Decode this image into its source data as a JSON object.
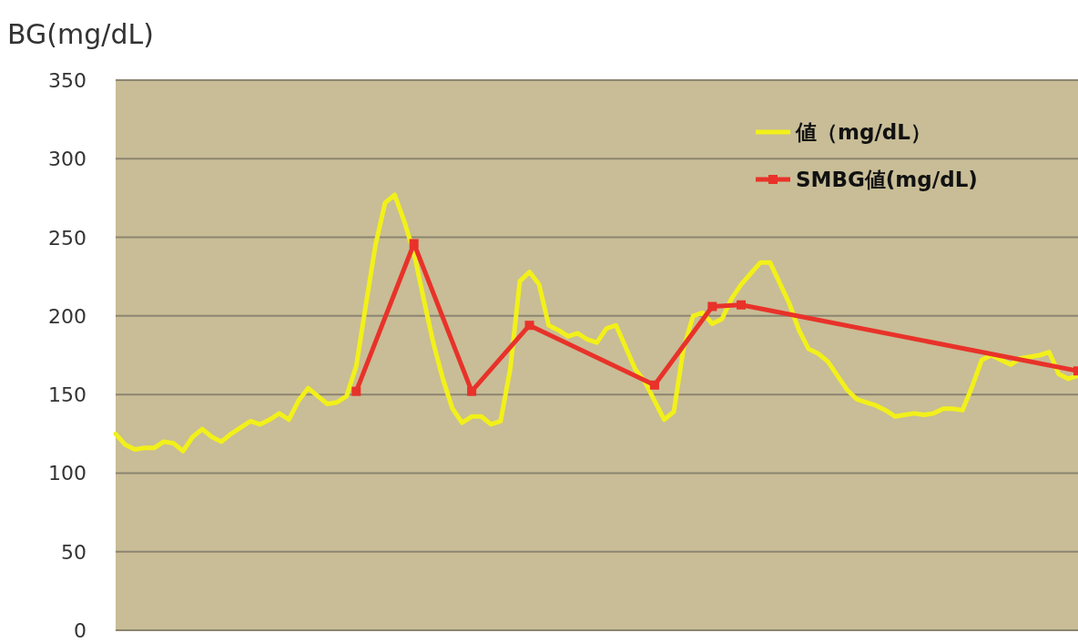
{
  "chart_data": {
    "type": "line",
    "ylabel": "BG(mg/dL)",
    "ylim": [
      0,
      350
    ],
    "yticks": [
      0,
      50,
      100,
      150,
      200,
      250,
      300,
      350
    ],
    "grid": "y",
    "legend": "top right",
    "tick_labels": "y",
    "line_style": "solid",
    "categories": [
      null,
      null,
      null,
      null,
      null,
      null,
      null,
      null,
      null,
      null,
      null,
      null,
      null,
      null,
      null,
      null,
      null,
      null,
      null,
      null,
      null,
      null,
      null,
      null,
      null,
      null,
      null,
      null,
      null,
      null,
      null,
      null,
      null,
      null,
      null,
      null,
      null,
      null,
      null,
      null,
      null,
      null,
      null,
      null,
      null,
      null,
      null,
      null,
      null,
      null,
      null,
      null,
      null,
      null,
      null,
      null,
      null,
      null,
      null,
      null,
      null,
      null,
      null,
      null,
      null,
      null,
      null,
      null,
      null,
      null,
      null,
      null,
      null,
      null,
      null,
      null,
      null,
      null,
      null,
      null,
      null,
      null,
      null,
      null,
      null,
      null,
      null,
      null,
      null,
      null,
      null,
      null,
      null,
      null,
      null,
      null,
      null,
      null,
      null,
      null,
      null
    ],
    "series": [
      {
        "name": "値（mg/dL）",
        "color": "#f2f01a",
        "marker": "none",
        "values": [
          125,
          118,
          115,
          116,
          116,
          120,
          119,
          114,
          123,
          128,
          123,
          120,
          125,
          129,
          133,
          131,
          134,
          138,
          134,
          146,
          154,
          149,
          144,
          145,
          149,
          168,
          207,
          245,
          272,
          277,
          260,
          240,
          211,
          183,
          160,
          141,
          132,
          136,
          136,
          131,
          133,
          166,
          222,
          228,
          220,
          194,
          191,
          187,
          189,
          185,
          183,
          192,
          194,
          180,
          166,
          158,
          146,
          134,
          139,
          179,
          200,
          202,
          195,
          198,
          211,
          220,
          227,
          234,
          234,
          221,
          208,
          191,
          179,
          176,
          171,
          162,
          153,
          147,
          145,
          143,
          140,
          136,
          137,
          138,
          137,
          138,
          141,
          141,
          140,
          155,
          172,
          175,
          172,
          169,
          173,
          174,
          175,
          177,
          163,
          160,
          162
        ]
      },
      {
        "name": "SMBG値(mg/dL)",
        "color": "#e8322a",
        "marker": "square",
        "values": [
          null,
          null,
          null,
          null,
          null,
          null,
          null,
          null,
          null,
          null,
          null,
          null,
          null,
          null,
          null,
          null,
          null,
          null,
          null,
          null,
          null,
          null,
          null,
          null,
          null,
          152,
          null,
          null,
          null,
          null,
          null,
          246,
          null,
          null,
          null,
          null,
          null,
          152,
          null,
          null,
          null,
          null,
          null,
          194,
          null,
          null,
          null,
          null,
          null,
          null,
          null,
          null,
          null,
          null,
          null,
          null,
          156,
          null,
          null,
          null,
          null,
          null,
          206,
          null,
          null,
          207,
          null,
          null,
          null,
          null,
          null,
          null,
          null,
          null,
          null,
          null,
          null,
          null,
          null,
          null,
          null,
          null,
          null,
          null,
          null,
          null,
          null,
          null,
          null,
          null,
          null,
          null,
          null,
          null,
          null,
          null,
          null,
          null,
          null,
          null,
          165
        ]
      }
    ]
  }
}
